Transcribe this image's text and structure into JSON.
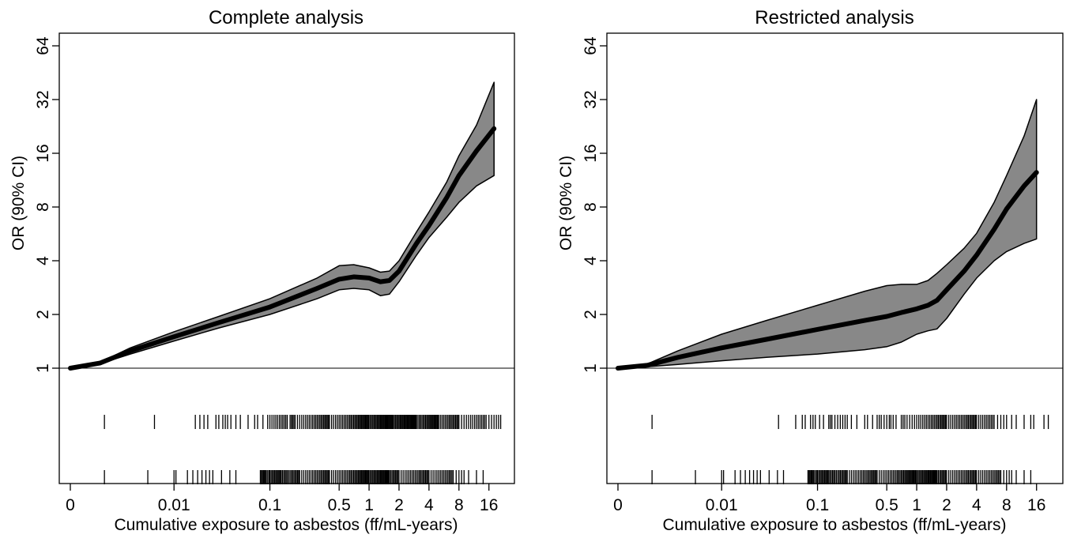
{
  "chart_data": [
    {
      "type": "line",
      "title": "Complete analysis",
      "xlabel": "Cumulative exposure to asbestos (ff/mL-years)",
      "ylabel": "OR (90% CI)",
      "x_scale": "log (pseudo-log, includes 0)",
      "y_scale": "log2",
      "x_ticks": [
        "0",
        "0.01",
        "0.1",
        "0.5",
        "1",
        "2",
        "4",
        "8",
        "16"
      ],
      "y_ticks": [
        "1",
        "2",
        "4",
        "8",
        "16",
        "32",
        "64"
      ],
      "xlim": [
        0,
        22
      ],
      "ylim": [
        1,
        64
      ],
      "reference_line": 1,
      "series": [
        {
          "x": [
            0,
            0.001,
            0.003,
            0.01,
            0.03,
            0.1,
            0.3,
            0.5,
            0.7,
            1.0,
            1.3,
            1.6,
            2.0,
            3.0,
            4.0,
            6.0,
            8.0,
            12.0,
            18.0
          ],
          "or": [
            1,
            1.07,
            1.25,
            1.5,
            1.8,
            2.2,
            2.8,
            3.15,
            3.25,
            3.2,
            3.05,
            3.1,
            3.5,
            5.0,
            6.3,
            9.0,
            12.0,
            16.5,
            22.0
          ],
          "lower": [
            1,
            1.06,
            1.2,
            1.42,
            1.68,
            2.0,
            2.45,
            2.75,
            2.8,
            2.75,
            2.55,
            2.6,
            3.05,
            4.3,
            5.4,
            7.0,
            8.5,
            10.5,
            12.0
          ],
          "upper": [
            1,
            1.08,
            1.3,
            1.6,
            1.95,
            2.45,
            3.2,
            3.75,
            3.8,
            3.65,
            3.45,
            3.5,
            4.0,
            5.8,
            7.5,
            11.0,
            15.5,
            23.0,
            40.0
          ]
        }
      ],
      "rug_rows": [
        {
          "row": "upper",
          "x": [
            0.0012,
            0.006,
            0.017,
            0.019,
            0.021,
            0.023,
            0.028,
            0.03,
            0.033,
            0.035,
            0.037,
            0.04,
            0.045,
            0.05,
            0.06,
            0.07,
            0.075,
            0.085,
            0.095,
            0.1,
            0.105,
            0.11,
            0.115,
            0.12,
            0.125,
            0.13,
            0.135,
            0.14,
            0.145,
            0.15,
            0.16,
            0.165,
            0.17,
            0.175,
            0.18,
            0.19,
            0.2,
            0.21,
            0.22,
            0.23,
            0.24,
            0.25,
            0.26,
            0.27,
            0.28,
            0.29,
            0.3,
            0.31,
            0.32,
            0.33,
            0.34,
            0.35,
            0.36,
            0.37,
            0.38,
            0.39,
            0.4,
            0.42,
            0.44,
            0.46,
            0.48,
            0.5,
            0.52,
            0.54,
            0.56,
            0.58,
            0.6,
            0.62,
            0.64,
            0.66,
            0.68,
            0.7,
            0.72,
            0.74,
            0.76,
            0.78,
            0.8,
            0.82,
            0.84,
            0.86,
            0.88,
            0.9,
            0.92,
            0.94,
            0.96,
            0.98,
            1.0,
            1.03,
            1.06,
            1.09,
            1.12,
            1.15,
            1.18,
            1.21,
            1.24,
            1.27,
            1.3,
            1.33,
            1.36,
            1.39,
            1.42,
            1.45,
            1.48,
            1.51,
            1.54,
            1.57,
            1.6,
            1.63,
            1.66,
            1.69,
            1.72,
            1.75,
            1.8,
            1.85,
            1.9,
            1.95,
            2.0,
            2.05,
            2.1,
            2.15,
            2.2,
            2.25,
            2.3,
            2.35,
            2.4,
            2.45,
            2.5,
            2.55,
            2.6,
            2.65,
            2.7,
            2.75,
            2.8,
            2.85,
            2.9,
            2.95,
            3.0,
            3.1,
            3.2,
            3.3,
            3.4,
            3.5,
            3.6,
            3.7,
            3.8,
            3.9,
            4.0,
            4.1,
            4.2,
            4.3,
            4.4,
            4.5,
            4.6,
            4.7,
            4.8,
            4.9,
            5.0,
            5.2,
            5.4,
            5.6,
            5.8,
            6.0,
            6.2,
            6.4,
            6.6,
            6.8,
            7.0,
            7.2,
            7.4,
            7.6,
            7.8,
            8.0,
            8.5,
            9.0,
            9.5,
            10.0,
            10.5,
            11.0,
            11.5,
            12.0,
            12.5,
            13.0,
            13.5,
            14.0,
            14.5,
            15.0,
            16.0,
            17.0,
            18.0,
            19.0,
            20.0,
            21.0
          ]
        },
        {
          "row": "lower",
          "x": [
            0.0012,
            0.005,
            0.01,
            0.0105,
            0.014,
            0.016,
            0.018,
            0.02,
            0.022,
            0.024,
            0.026,
            0.032,
            0.039,
            0.045,
            0.08,
            0.082,
            0.084,
            0.086,
            0.088,
            0.09,
            0.092,
            0.095,
            0.098,
            0.1,
            0.103,
            0.106,
            0.109,
            0.112,
            0.115,
            0.118,
            0.121,
            0.124,
            0.127,
            0.13,
            0.134,
            0.138,
            0.142,
            0.146,
            0.15,
            0.155,
            0.16,
            0.165,
            0.17,
            0.175,
            0.18,
            0.185,
            0.19,
            0.195,
            0.2,
            0.21,
            0.22,
            0.23,
            0.24,
            0.25,
            0.26,
            0.27,
            0.28,
            0.29,
            0.3,
            0.31,
            0.32,
            0.33,
            0.34,
            0.35,
            0.36,
            0.37,
            0.38,
            0.39,
            0.4,
            0.42,
            0.44,
            0.46,
            0.48,
            0.5,
            0.52,
            0.54,
            0.56,
            0.58,
            0.6,
            0.62,
            0.64,
            0.66,
            0.68,
            0.7,
            0.72,
            0.74,
            0.76,
            0.78,
            0.8,
            0.82,
            0.84,
            0.86,
            0.88,
            0.9,
            0.92,
            0.94,
            0.96,
            0.98,
            1.0,
            1.03,
            1.06,
            1.09,
            1.12,
            1.15,
            1.18,
            1.21,
            1.24,
            1.27,
            1.3,
            1.33,
            1.36,
            1.39,
            1.42,
            1.45,
            1.48,
            1.51,
            1.54,
            1.57,
            1.6,
            1.65,
            1.7,
            1.75,
            1.8,
            1.85,
            1.9,
            1.95,
            2.0,
            2.1,
            2.2,
            2.3,
            2.4,
            2.5,
            2.6,
            2.7,
            2.8,
            2.9,
            3.0,
            3.1,
            3.2,
            3.3,
            3.4,
            3.5,
            3.6,
            3.7,
            3.8,
            3.9,
            4.0,
            4.2,
            4.4,
            4.6,
            4.8,
            5.0,
            5.2,
            5.4,
            5.6,
            5.8,
            6.0,
            6.2,
            6.4,
            6.6,
            6.8,
            7.0,
            7.5,
            8.0,
            8.5,
            9.0,
            10.0,
            12.0,
            14.0
          ]
        }
      ]
    },
    {
      "type": "line",
      "title": "Restricted analysis",
      "xlabel": "Cumulative exposure to asbestos (ff/mL-years)",
      "ylabel": "OR (90% CI)",
      "x_scale": "log (pseudo-log, includes 0)",
      "y_scale": "log2",
      "x_ticks": [
        "0",
        "0.01",
        "0.1",
        "0.5",
        "1",
        "2",
        "4",
        "8",
        "16"
      ],
      "y_ticks": [
        "1",
        "2",
        "4",
        "8",
        "16",
        "32",
        "64"
      ],
      "xlim": [
        0,
        22
      ],
      "ylim": [
        1,
        64
      ],
      "reference_line": 1,
      "series": [
        {
          "x": [
            0,
            0.001,
            0.003,
            0.01,
            0.03,
            0.1,
            0.3,
            0.5,
            0.7,
            1.0,
            1.3,
            1.6,
            2.0,
            3.0,
            4.0,
            6.0,
            8.0,
            12.0,
            16.0
          ],
          "or": [
            1,
            1.04,
            1.15,
            1.3,
            1.45,
            1.65,
            1.85,
            1.95,
            2.05,
            2.15,
            2.25,
            2.4,
            2.75,
            3.5,
            4.3,
            6.0,
            7.8,
            10.5,
            12.5
          ],
          "lower": [
            1,
            1.02,
            1.05,
            1.1,
            1.15,
            1.2,
            1.27,
            1.32,
            1.4,
            1.55,
            1.62,
            1.66,
            1.9,
            2.6,
            3.2,
            4.0,
            4.5,
            5.0,
            5.3
          ],
          "upper": [
            1,
            1.06,
            1.25,
            1.55,
            1.85,
            2.25,
            2.7,
            2.9,
            2.95,
            2.95,
            3.1,
            3.4,
            3.8,
            4.7,
            5.7,
            8.5,
            12.0,
            20.0,
            32.0
          ]
        }
      ],
      "rug_rows": [
        {
          "row": "upper",
          "x": [
            0.0012,
            0.04,
            0.06,
            0.07,
            0.075,
            0.085,
            0.09,
            0.095,
            0.105,
            0.115,
            0.13,
            0.135,
            0.14,
            0.15,
            0.16,
            0.17,
            0.18,
            0.19,
            0.2,
            0.22,
            0.25,
            0.3,
            0.32,
            0.36,
            0.4,
            0.42,
            0.44,
            0.47,
            0.5,
            0.53,
            0.55,
            0.58,
            0.62,
            0.7,
            0.73,
            0.76,
            0.8,
            0.85,
            0.9,
            0.95,
            1.0,
            1.05,
            1.1,
            1.15,
            1.2,
            1.25,
            1.3,
            1.35,
            1.4,
            1.45,
            1.5,
            1.55,
            1.6,
            1.65,
            1.7,
            1.75,
            1.8,
            1.85,
            1.9,
            1.95,
            2.0,
            2.1,
            2.2,
            2.3,
            2.4,
            2.5,
            2.6,
            2.7,
            2.8,
            2.9,
            3.0,
            3.1,
            3.2,
            3.3,
            3.4,
            3.5,
            3.6,
            3.7,
            3.8,
            3.9,
            4.0,
            4.2,
            4.4,
            4.6,
            4.8,
            5.0,
            5.2,
            5.4,
            5.6,
            5.8,
            6.0,
            6.5,
            7.0,
            7.5,
            8.0,
            9.0,
            10.0,
            12.0,
            14.0,
            15.0,
            19.0,
            21.0
          ]
        },
        {
          "row": "lower",
          "x": [
            0.0012,
            0.005,
            0.01,
            0.0105,
            0.014,
            0.016,
            0.018,
            0.02,
            0.022,
            0.024,
            0.026,
            0.032,
            0.039,
            0.045,
            0.08,
            0.082,
            0.084,
            0.086,
            0.088,
            0.09,
            0.092,
            0.095,
            0.098,
            0.1,
            0.103,
            0.106,
            0.109,
            0.112,
            0.115,
            0.118,
            0.121,
            0.124,
            0.127,
            0.13,
            0.134,
            0.138,
            0.142,
            0.146,
            0.15,
            0.155,
            0.16,
            0.165,
            0.17,
            0.175,
            0.18,
            0.185,
            0.19,
            0.195,
            0.2,
            0.21,
            0.22,
            0.23,
            0.24,
            0.25,
            0.26,
            0.27,
            0.28,
            0.29,
            0.3,
            0.31,
            0.32,
            0.33,
            0.34,
            0.35,
            0.36,
            0.37,
            0.38,
            0.39,
            0.4,
            0.42,
            0.44,
            0.46,
            0.48,
            0.5,
            0.52,
            0.54,
            0.56,
            0.58,
            0.6,
            0.62,
            0.64,
            0.66,
            0.68,
            0.7,
            0.72,
            0.74,
            0.76,
            0.78,
            0.8,
            0.82,
            0.84,
            0.86,
            0.88,
            0.9,
            0.92,
            0.94,
            0.96,
            0.98,
            1.0,
            1.03,
            1.06,
            1.09,
            1.12,
            1.15,
            1.18,
            1.21,
            1.24,
            1.27,
            1.3,
            1.33,
            1.36,
            1.39,
            1.42,
            1.45,
            1.48,
            1.51,
            1.54,
            1.57,
            1.6,
            1.65,
            1.7,
            1.75,
            1.8,
            1.85,
            1.9,
            1.95,
            2.0,
            2.1,
            2.2,
            2.3,
            2.4,
            2.5,
            2.6,
            2.7,
            2.8,
            2.9,
            3.0,
            3.1,
            3.2,
            3.3,
            3.4,
            3.5,
            3.6,
            3.7,
            3.8,
            3.9,
            4.0,
            4.2,
            4.4,
            4.6,
            4.8,
            5.0,
            5.2,
            5.4,
            5.6,
            5.8,
            6.0,
            6.2,
            6.4,
            6.6,
            6.8,
            7.0,
            7.5,
            8.0,
            8.5,
            9.0,
            10.0,
            12.0,
            14.0
          ]
        }
      ]
    }
  ],
  "colors": {
    "band": "#888888",
    "line": "#000000",
    "background": "#ffffff"
  }
}
